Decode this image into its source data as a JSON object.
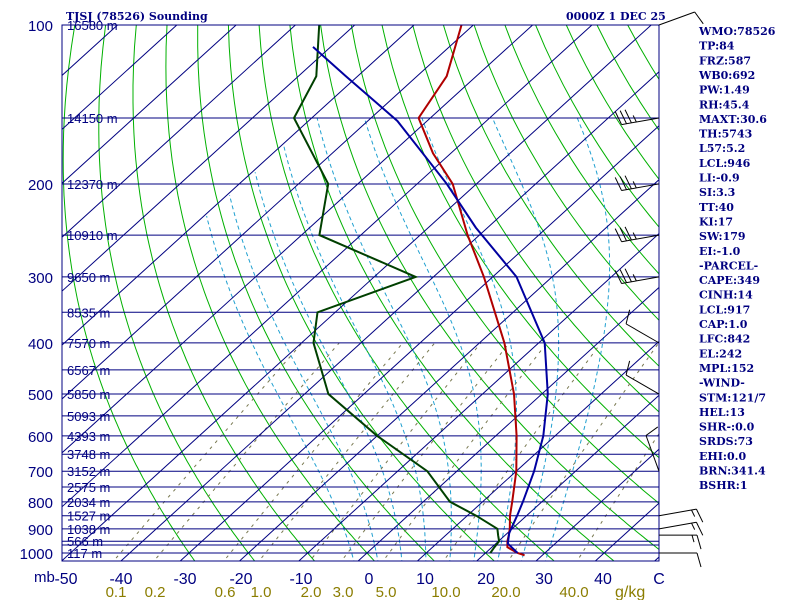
{
  "chart_data": {
    "type": "skew-t log-p",
    "title": "TJSJ (78526) Sounding",
    "time_label": "0000Z  1 DEC 25",
    "pressure_ticks": [
      100,
      200,
      300,
      400,
      500,
      600,
      700,
      800,
      900,
      1000
    ],
    "p_axis_unit": "mb",
    "temp_ticks": [
      -50,
      -40,
      -30,
      -20,
      -10,
      0,
      10,
      20,
      30,
      40
    ],
    "temp_tick_last": "C",
    "mixing_ratio_ticks": [
      "0.1",
      "0.2",
      "0.6",
      "1.0",
      "2.0",
      "3.0",
      "5.0",
      "10.0",
      "20.0",
      "40.0"
    ],
    "mixing_ratio_unit": "g/kg",
    "height_labels": [
      {
        "p": 100,
        "text": "16580 m"
      },
      {
        "p": 150,
        "text": "14150 m"
      },
      {
        "p": 200,
        "text": "12370 m"
      },
      {
        "p": 250,
        "text": "10910 m"
      },
      {
        "p": 300,
        "text": "9650 m"
      },
      {
        "p": 350,
        "text": "8535 m"
      },
      {
        "p": 400,
        "text": "7570 m"
      },
      {
        "p": 450,
        "text": "6567 m"
      },
      {
        "p": 500,
        "text": "5850 m"
      },
      {
        "p": 550,
        "text": "5093 m"
      },
      {
        "p": 600,
        "text": "4393 m"
      },
      {
        "p": 650,
        "text": "3748 m"
      },
      {
        "p": 700,
        "text": "3152 m"
      },
      {
        "p": 750,
        "text": "2575 m"
      },
      {
        "p": 800,
        "text": "2034 m"
      },
      {
        "p": 850,
        "text": "1527 m"
      },
      {
        "p": 900,
        "text": "1038 m"
      },
      {
        "p": 950,
        "text": "566 m"
      },
      {
        "p": 1000,
        "text": "117 m"
      }
    ],
    "series": [
      {
        "name": "temperature",
        "color": "#b00000",
        "points": [
          {
            "p": 1010,
            "t": 27.0
          },
          {
            "p": 1000,
            "t": 25.4
          },
          {
            "p": 975,
            "t": 22.6
          },
          {
            "p": 950,
            "t": 21.5
          },
          {
            "p": 925,
            "t": 20.6
          },
          {
            "p": 900,
            "t": 19.6
          },
          {
            "p": 850,
            "t": 17.2
          },
          {
            "p": 800,
            "t": 15.0
          },
          {
            "p": 700,
            "t": 10.0
          },
          {
            "p": 600,
            "t": 3.5
          },
          {
            "p": 500,
            "t": -4.7
          },
          {
            "p": 400,
            "t": -15.8
          },
          {
            "p": 300,
            "t": -31.5
          },
          {
            "p": 250,
            "t": -42.0
          },
          {
            "p": 200,
            "t": -54.0
          },
          {
            "p": 175,
            "t": -63.0
          },
          {
            "p": 150,
            "t": -72.0
          },
          {
            "p": 125,
            "t": -75.0
          },
          {
            "p": 100,
            "t": -82.0
          }
        ]
      },
      {
        "name": "dewpoint",
        "color": "#004000",
        "points": [
          {
            "p": 1000,
            "t": 20.8
          },
          {
            "p": 975,
            "t": 20.4
          },
          {
            "p": 950,
            "t": 20.1
          },
          {
            "p": 925,
            "t": 18.8
          },
          {
            "p": 900,
            "t": 17.5
          },
          {
            "p": 850,
            "t": 11.5
          },
          {
            "p": 800,
            "t": 4.5
          },
          {
            "p": 700,
            "t": -5.0
          },
          {
            "p": 600,
            "t": -20.0
          },
          {
            "p": 500,
            "t": -36.0
          },
          {
            "p": 400,
            "t": -48.0
          },
          {
            "p": 350,
            "t": -53.0
          },
          {
            "p": 300,
            "t": -43.0
          },
          {
            "p": 250,
            "t": -67.0
          },
          {
            "p": 200,
            "t": -75.0
          },
          {
            "p": 150,
            "t": -93.0
          },
          {
            "p": 125,
            "t": -97.0
          },
          {
            "p": 100,
            "t": -106.0
          }
        ]
      },
      {
        "name": "parcel",
        "color": "#0000a0",
        "points": [
          {
            "p": 1000,
            "t": 25.4
          },
          {
            "p": 960,
            "t": 22.0
          },
          {
            "p": 917,
            "t": 20.3
          },
          {
            "p": 850,
            "t": 18.4
          },
          {
            "p": 800,
            "t": 16.8
          },
          {
            "p": 700,
            "t": 13.0
          },
          {
            "p": 600,
            "t": 8.0
          },
          {
            "p": 500,
            "t": 1.0
          },
          {
            "p": 400,
            "t": -9.0
          },
          {
            "p": 300,
            "t": -26.0
          },
          {
            "p": 242,
            "t": -42.0
          },
          {
            "p": 200,
            "t": -55.0
          },
          {
            "p": 152,
            "t": -75.0
          },
          {
            "p": 125,
            "t": -92.0
          },
          {
            "p": 110,
            "t": -103.0
          }
        ]
      }
    ],
    "wind_barbs": [
      {
        "p": 100,
        "dir": 70,
        "spd": 10
      },
      {
        "p": 150,
        "dir": 260,
        "spd": 35
      },
      {
        "p": 200,
        "dir": 260,
        "spd": 35
      },
      {
        "p": 250,
        "dir": 260,
        "spd": 35
      },
      {
        "p": 300,
        "dir": 260,
        "spd": 35
      },
      {
        "p": 400,
        "dir": 300,
        "spd": 10
      },
      {
        "p": 500,
        "dir": 300,
        "spd": 10
      },
      {
        "p": 700,
        "dir": 340,
        "spd": 10
      },
      {
        "p": 850,
        "dir": 80,
        "spd": 15
      },
      {
        "p": 900,
        "dir": 80,
        "spd": 15
      },
      {
        "p": 925,
        "dir": 90,
        "spd": 15
      },
      {
        "p": 1000,
        "dir": 90,
        "spd": 10
      }
    ],
    "indices": [
      "WMO:78526",
      "TP:84",
      "FRZ:587",
      "WB0:692",
      "PW:1.49",
      "RH:45.4",
      "MAXT:30.6",
      "TH:5743",
      "L57:5.2",
      "LCL:946",
      "LI:-0.9",
      "SI:3.3",
      "TT:40",
      "KI:17",
      "SW:179",
      "EI:-1.0",
      "-PARCEL-",
      "CAPE:349",
      "CINH:14",
      "LCL:917",
      "CAP:1.0",
      "LFC:842",
      "EL:242",
      "MPL:152",
      "-WIND-",
      "STM:121/7",
      "HEL:13",
      "SHR-:0.0",
      "SRDS:73",
      "EHI:0.0",
      "BRN:341.4",
      "BSHR:1"
    ],
    "colors": {
      "axis_text": "#000080",
      "isobar": "#000080",
      "isotherm": "#000080",
      "dry_adiabat": "#00b000",
      "moist_adiabat": "#20a0d0",
      "mixing_ratio": "#787850",
      "mixing_ratio_text": "#8b7d00"
    }
  }
}
